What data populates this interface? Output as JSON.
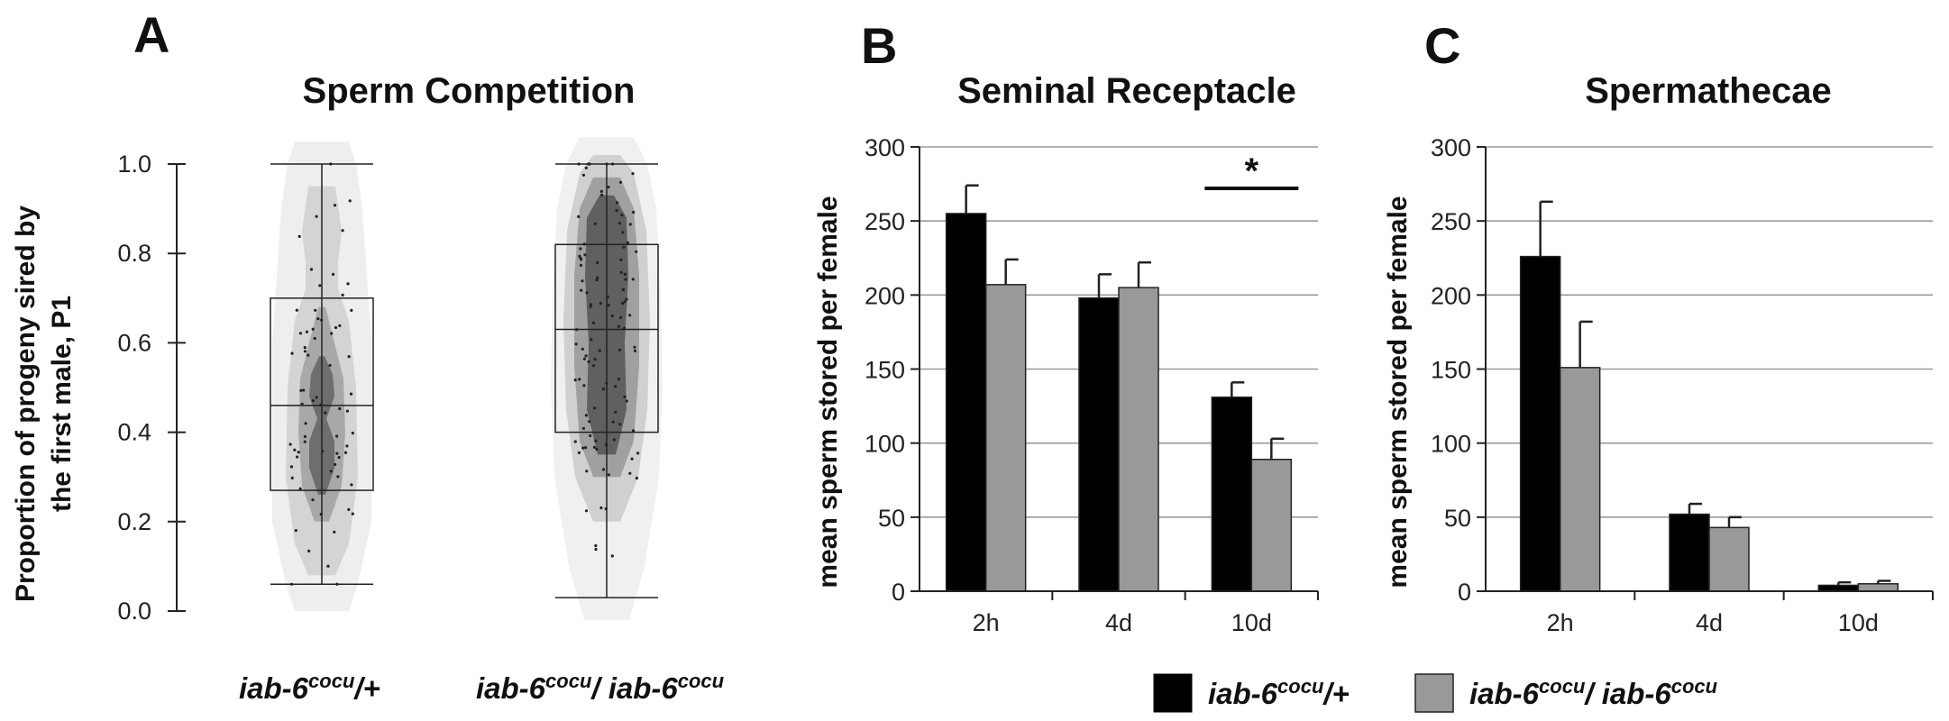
{
  "panels": {
    "A": {
      "letter": "A",
      "title": "Sperm Competition"
    },
    "B": {
      "letter": "B",
      "title": "Seminal Receptacle"
    },
    "C": {
      "letter": "C",
      "title": "Spermathecae"
    }
  },
  "genotypes": [
    {
      "base": "iab-6",
      "sup": "cocu",
      "suffix": "/+"
    },
    {
      "base": "iab-6",
      "sup": "cocu",
      "mid": "/ iab-6",
      "sup2": "cocu"
    }
  ],
  "colors": {
    "heterozygote": "#000000",
    "homozygote": "#999999"
  },
  "chart_data": [
    {
      "id": "A",
      "type": "violin-box",
      "title": "Sperm Competition",
      "ylabel_lines": [
        "Proportion of progeny sired by",
        "the first male, P1"
      ],
      "ylim": [
        0,
        1
      ],
      "yticks": [
        "0.0",
        "0.2",
        "0.4",
        "0.6",
        "0.8",
        "1.0"
      ],
      "groups": [
        {
          "name": "iab-6cocu/+",
          "min": 0.06,
          "q1": 0.27,
          "median": 0.46,
          "q3": 0.7,
          "max": 1.0
        },
        {
          "name": "iab-6cocu/ iab-6cocu",
          "min": 0.03,
          "q1": 0.4,
          "median": 0.63,
          "q3": 0.82,
          "max": 1.0
        }
      ]
    },
    {
      "id": "B",
      "type": "bar",
      "title": "Seminal Receptacle",
      "ylabel": "mean sperm stored per female",
      "ylim": [
        0,
        300
      ],
      "yticks": [
        "0",
        "50",
        "100",
        "150",
        "200",
        "250",
        "300"
      ],
      "categories": [
        "2h",
        "4d",
        "10d"
      ],
      "series": [
        {
          "name": "iab-6cocu/+",
          "values": [
            255,
            198,
            131
          ],
          "errors": [
            19,
            16,
            10
          ]
        },
        {
          "name": "iab-6cocu/ iab-6cocu",
          "values": [
            207,
            205,
            89
          ],
          "errors": [
            17,
            17,
            14
          ]
        }
      ],
      "annotation": {
        "text": "*",
        "category": "10d",
        "y": 272
      }
    },
    {
      "id": "C",
      "type": "bar",
      "title": "Spermathecae",
      "ylabel": "mean sperm stored per female",
      "ylim": [
        0,
        300
      ],
      "yticks": [
        "0",
        "50",
        "100",
        "150",
        "200",
        "250",
        "300"
      ],
      "categories": [
        "2h",
        "4d",
        "10d"
      ],
      "series": [
        {
          "name": "iab-6cocu/+",
          "values": [
            226,
            52,
            4
          ],
          "errors": [
            37,
            7,
            2
          ]
        },
        {
          "name": "iab-6cocu/ iab-6cocu",
          "values": [
            151,
            43,
            5
          ],
          "errors": [
            31,
            7,
            2
          ]
        }
      ]
    }
  ]
}
